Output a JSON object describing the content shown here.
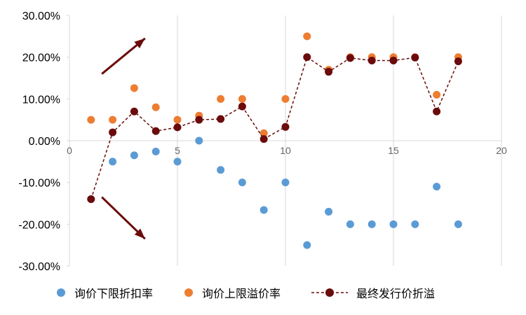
{
  "chart_data": {
    "type": "scatter",
    "x": [
      1,
      2,
      3,
      4,
      5,
      6,
      7,
      8,
      9,
      10,
      11,
      12,
      13,
      14,
      15,
      16,
      17,
      18
    ],
    "xlim": [
      0,
      20
    ],
    "xticks": [
      "0",
      "5",
      "10",
      "15",
      "20"
    ],
    "xtick_values": [
      0,
      5,
      10,
      15,
      20
    ],
    "ylim": [
      -30,
      30
    ],
    "yticks": [
      "30.00%",
      "20.00%",
      "10.00%",
      "0.00%",
      "-10.00%",
      "-20.00%",
      "-30.00%"
    ],
    "ytick_values": [
      30,
      20,
      10,
      0,
      -10,
      -20,
      -30
    ],
    "y_unit": "%",
    "grid": "vertical",
    "legend_position": "bottom",
    "series": [
      {
        "name": "询价下限折扣率",
        "style": "markers",
        "color": "#5b9bd5",
        "values": [
          -14,
          -5,
          -3.5,
          -2.6,
          -5,
          0,
          -7,
          -10,
          -16.6,
          -10,
          -25,
          -17,
          -20,
          -20,
          -20,
          -20,
          -11,
          -20
        ]
      },
      {
        "name": "询价上限溢价率",
        "style": "markers",
        "color": "#ed7d31",
        "values": [
          5,
          5,
          12.6,
          8,
          5,
          6,
          10,
          10,
          1.8,
          10,
          25,
          17,
          20,
          20,
          20,
          20,
          11,
          20
        ]
      },
      {
        "name": "最终发行价折溢",
        "style": "dashed-line-markers",
        "color": "#6b0b0b",
        "values": [
          -14,
          2,
          7,
          2.3,
          3.2,
          5,
          5.2,
          8.2,
          0.4,
          3.3,
          20,
          16.5,
          19.8,
          19.2,
          19.2,
          19.9,
          7,
          19
        ]
      }
    ],
    "annotations": [
      {
        "type": "arrow",
        "color": "#6b0b0b",
        "from": [
          1.5,
          16
        ],
        "to": [
          3.5,
          24.5
        ],
        "direction": "up"
      },
      {
        "type": "arrow",
        "color": "#6b0b0b",
        "from": [
          1.5,
          -13.5
        ],
        "to": [
          3.5,
          -23.5
        ],
        "direction": "down"
      }
    ]
  }
}
